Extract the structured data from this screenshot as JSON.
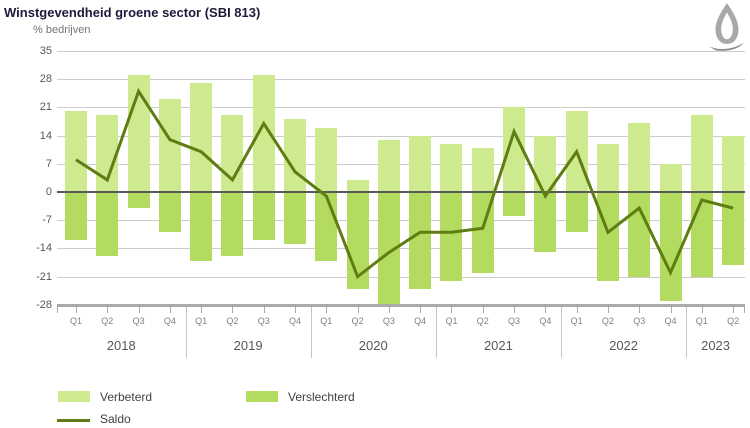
{
  "title": "Winstgevendheid groene sector (SBI 813)",
  "ylabel": "% bedrijven",
  "legend": {
    "verbeterd": "Verbeterd",
    "verslechterd": "Verslechterd",
    "saldo": "Saldo"
  },
  "colors": {
    "verbeterd": "#cdea8e",
    "verslechterd": "#b3db5f",
    "saldo": "#5f7d12",
    "zero_line": "#595959",
    "axis_line": "#ababab",
    "gridline": "#cccccc"
  },
  "logo_icon": "leaf-quill-logo",
  "chart_data": {
    "type": "bar",
    "title": "Winstgevendheid groene sector (SBI 813)",
    "ylabel": "% bedrijven",
    "ylim": [
      -28,
      35
    ],
    "yticks": [
      35,
      28,
      21,
      14,
      7,
      0,
      -7,
      -14,
      -21,
      -28
    ],
    "grid": true,
    "legend_position": "bottom",
    "years": [
      {
        "label": "2018",
        "quarters": [
          "Q1",
          "Q2",
          "Q3",
          "Q4"
        ]
      },
      {
        "label": "2019",
        "quarters": [
          "Q1",
          "Q2",
          "Q3",
          "Q4"
        ]
      },
      {
        "label": "2020",
        "quarters": [
          "Q1",
          "Q2",
          "Q3",
          "Q4"
        ]
      },
      {
        "label": "2021",
        "quarters": [
          "Q1",
          "Q2",
          "Q3",
          "Q4"
        ]
      },
      {
        "label": "2022",
        "quarters": [
          "Q1",
          "Q2",
          "Q3",
          "Q4"
        ]
      },
      {
        "label": "2023",
        "quarters": [
          "Q1",
          "Q2"
        ]
      }
    ],
    "series": [
      {
        "name": "Verbeterd",
        "type": "bar",
        "color": "#cdea8e",
        "values": [
          20,
          19,
          29,
          23,
          27,
          19,
          29,
          18,
          16,
          3,
          13,
          14,
          12,
          11,
          21,
          14,
          20,
          12,
          17,
          7,
          19,
          14
        ]
      },
      {
        "name": "Verslechterd",
        "type": "bar",
        "color": "#b3db5f",
        "values": [
          -12,
          -16,
          -4,
          -10,
          -17,
          -16,
          -12,
          -13,
          -17,
          -24,
          -28,
          -24,
          -22,
          -20,
          -6,
          -15,
          -10,
          -22,
          -21,
          -27,
          -21,
          -18
        ]
      },
      {
        "name": "Saldo",
        "type": "line",
        "color": "#5f7d12",
        "values": [
          8,
          3,
          25,
          13,
          10,
          3,
          17,
          5,
          -1,
          -21,
          -15,
          -10,
          -10,
          -9,
          15,
          -1,
          10,
          -10,
          -4,
          -20,
          -2,
          -4
        ]
      }
    ]
  }
}
